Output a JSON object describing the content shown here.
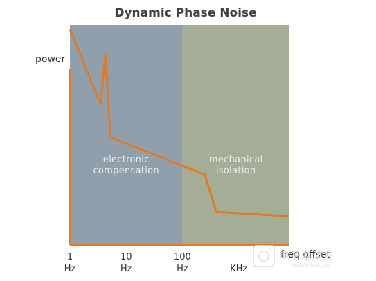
{
  "chart_data": {
    "type": "line",
    "title": "Dynamic Phase Noise",
    "ylabel": "power",
    "xlabel": "freq offset",
    "x_scale": "log",
    "y_scale": "relative",
    "xlim": [
      1,
      8000
    ],
    "ylim": [
      0,
      100
    ],
    "ticks": [
      {
        "x": 1,
        "value": "1",
        "unit": "Hz"
      },
      {
        "x": 10,
        "value": "10",
        "unit": "Hz"
      },
      {
        "x": 100,
        "value": "100",
        "unit": "Hz"
      },
      {
        "x": 1000,
        "value": "",
        "unit": "KHz"
      }
    ],
    "regions": [
      {
        "from": 1,
        "to": 100,
        "line1": "electronic",
        "line2": "compensation",
        "color": "#8f9fac"
      },
      {
        "from": 100,
        "to": 8000,
        "line1": "mechanical",
        "line2": "isolation",
        "color": "#a6ad96"
      }
    ],
    "series": [
      {
        "color": "#e07a26",
        "x": [
          1,
          3.5,
          4.3,
          5.2,
          250,
          400,
          8000
        ],
        "y": [
          98,
          64,
          87,
          49,
          32,
          15,
          13
        ]
      }
    ],
    "axis_color": "#e07a26",
    "grid": false,
    "legend": "none"
  },
  "watermark": {
    "text": "电子发烧友",
    "sub": "www.elecfans.com"
  }
}
